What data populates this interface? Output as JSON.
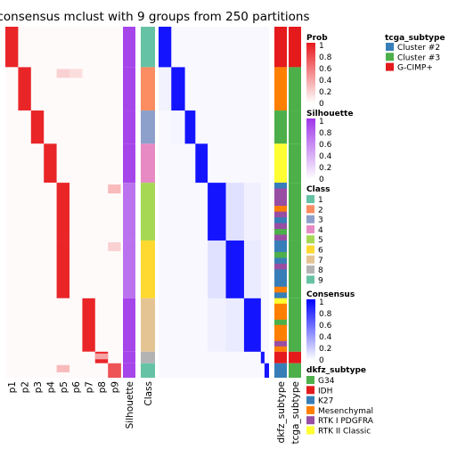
{
  "title": "consensus mclust with 9 groups from 250 partitions",
  "chart_data": {
    "type": "heatmap",
    "title": "consensus mclust with 9 groups from 250 partitions",
    "left_columns": [
      "p1",
      "p2",
      "p3",
      "p4",
      "p5",
      "p6",
      "p7",
      "p8",
      "p9"
    ],
    "annotation_columns": [
      "Silhouette",
      "Class"
    ],
    "right_columns": [
      "dkfz_subtype",
      "tcga_subtype"
    ],
    "class_sizes": [
      28,
      30,
      23,
      27,
      40,
      40,
      37,
      8,
      10
    ],
    "class_colors": [
      "#66C2A5",
      "#FC8D62",
      "#8DA0CB",
      "#E78AC3",
      "#A6D854",
      "#FFD92F",
      "#E5C494",
      "#B3B3B3",
      "#66C2A5"
    ],
    "prob_legend": {
      "title": "Prob",
      "ticks": [
        "1",
        "0.8",
        "0.6",
        "0.4",
        "0.2",
        "0"
      ],
      "color_high": "#E8191D",
      "color_low": "#FFFFFF"
    },
    "silhouette_legend": {
      "title": "Silhouette",
      "ticks": [
        "1",
        "0.8",
        "0.6",
        "0.4",
        "0.2",
        "0"
      ],
      "color_high": "#9E35E8",
      "color_low": "#FFFFFF"
    },
    "class_legend": {
      "title": "Class",
      "items": [
        {
          "label": "1",
          "color": "#66C2A5"
        },
        {
          "label": "2",
          "color": "#FC8D62"
        },
        {
          "label": "3",
          "color": "#8DA0CB"
        },
        {
          "label": "4",
          "color": "#E78AC3"
        },
        {
          "label": "5",
          "color": "#A6D854"
        },
        {
          "label": "6",
          "color": "#FFD92F"
        },
        {
          "label": "7",
          "color": "#E5C494"
        },
        {
          "label": "8",
          "color": "#B3B3B3"
        },
        {
          "label": "9",
          "color": "#66C2A5"
        }
      ]
    },
    "consensus_legend": {
      "title": "Consensus",
      "ticks": [
        "1",
        "0.8",
        "0.6",
        "0.4",
        "0.2",
        "0"
      ],
      "color_high": "#0000FF",
      "color_low": "#FFFFFF"
    },
    "tcga_legend": {
      "title": "tcga_subtype",
      "items": [
        {
          "label": "Cluster #2",
          "color": "#377EB8"
        },
        {
          "label": "Cluster #3",
          "color": "#4DAF4A"
        },
        {
          "label": "G-CIMP+",
          "color": "#E41A1C"
        }
      ]
    },
    "dkfz_legend": {
      "title": "dkfz_subtype",
      "items": [
        {
          "label": "G34",
          "color": "#4DAF4A"
        },
        {
          "label": "IDH",
          "color": "#E41A1C"
        },
        {
          "label": "K27",
          "color": "#377EB8"
        },
        {
          "label": "Mesenchymal",
          "color": "#FF7F00"
        },
        {
          "label": "RTK I PDGFRA",
          "color": "#984EA3"
        },
        {
          "label": "RTK II Classic",
          "color": "#FFFF33"
        }
      ]
    }
  }
}
